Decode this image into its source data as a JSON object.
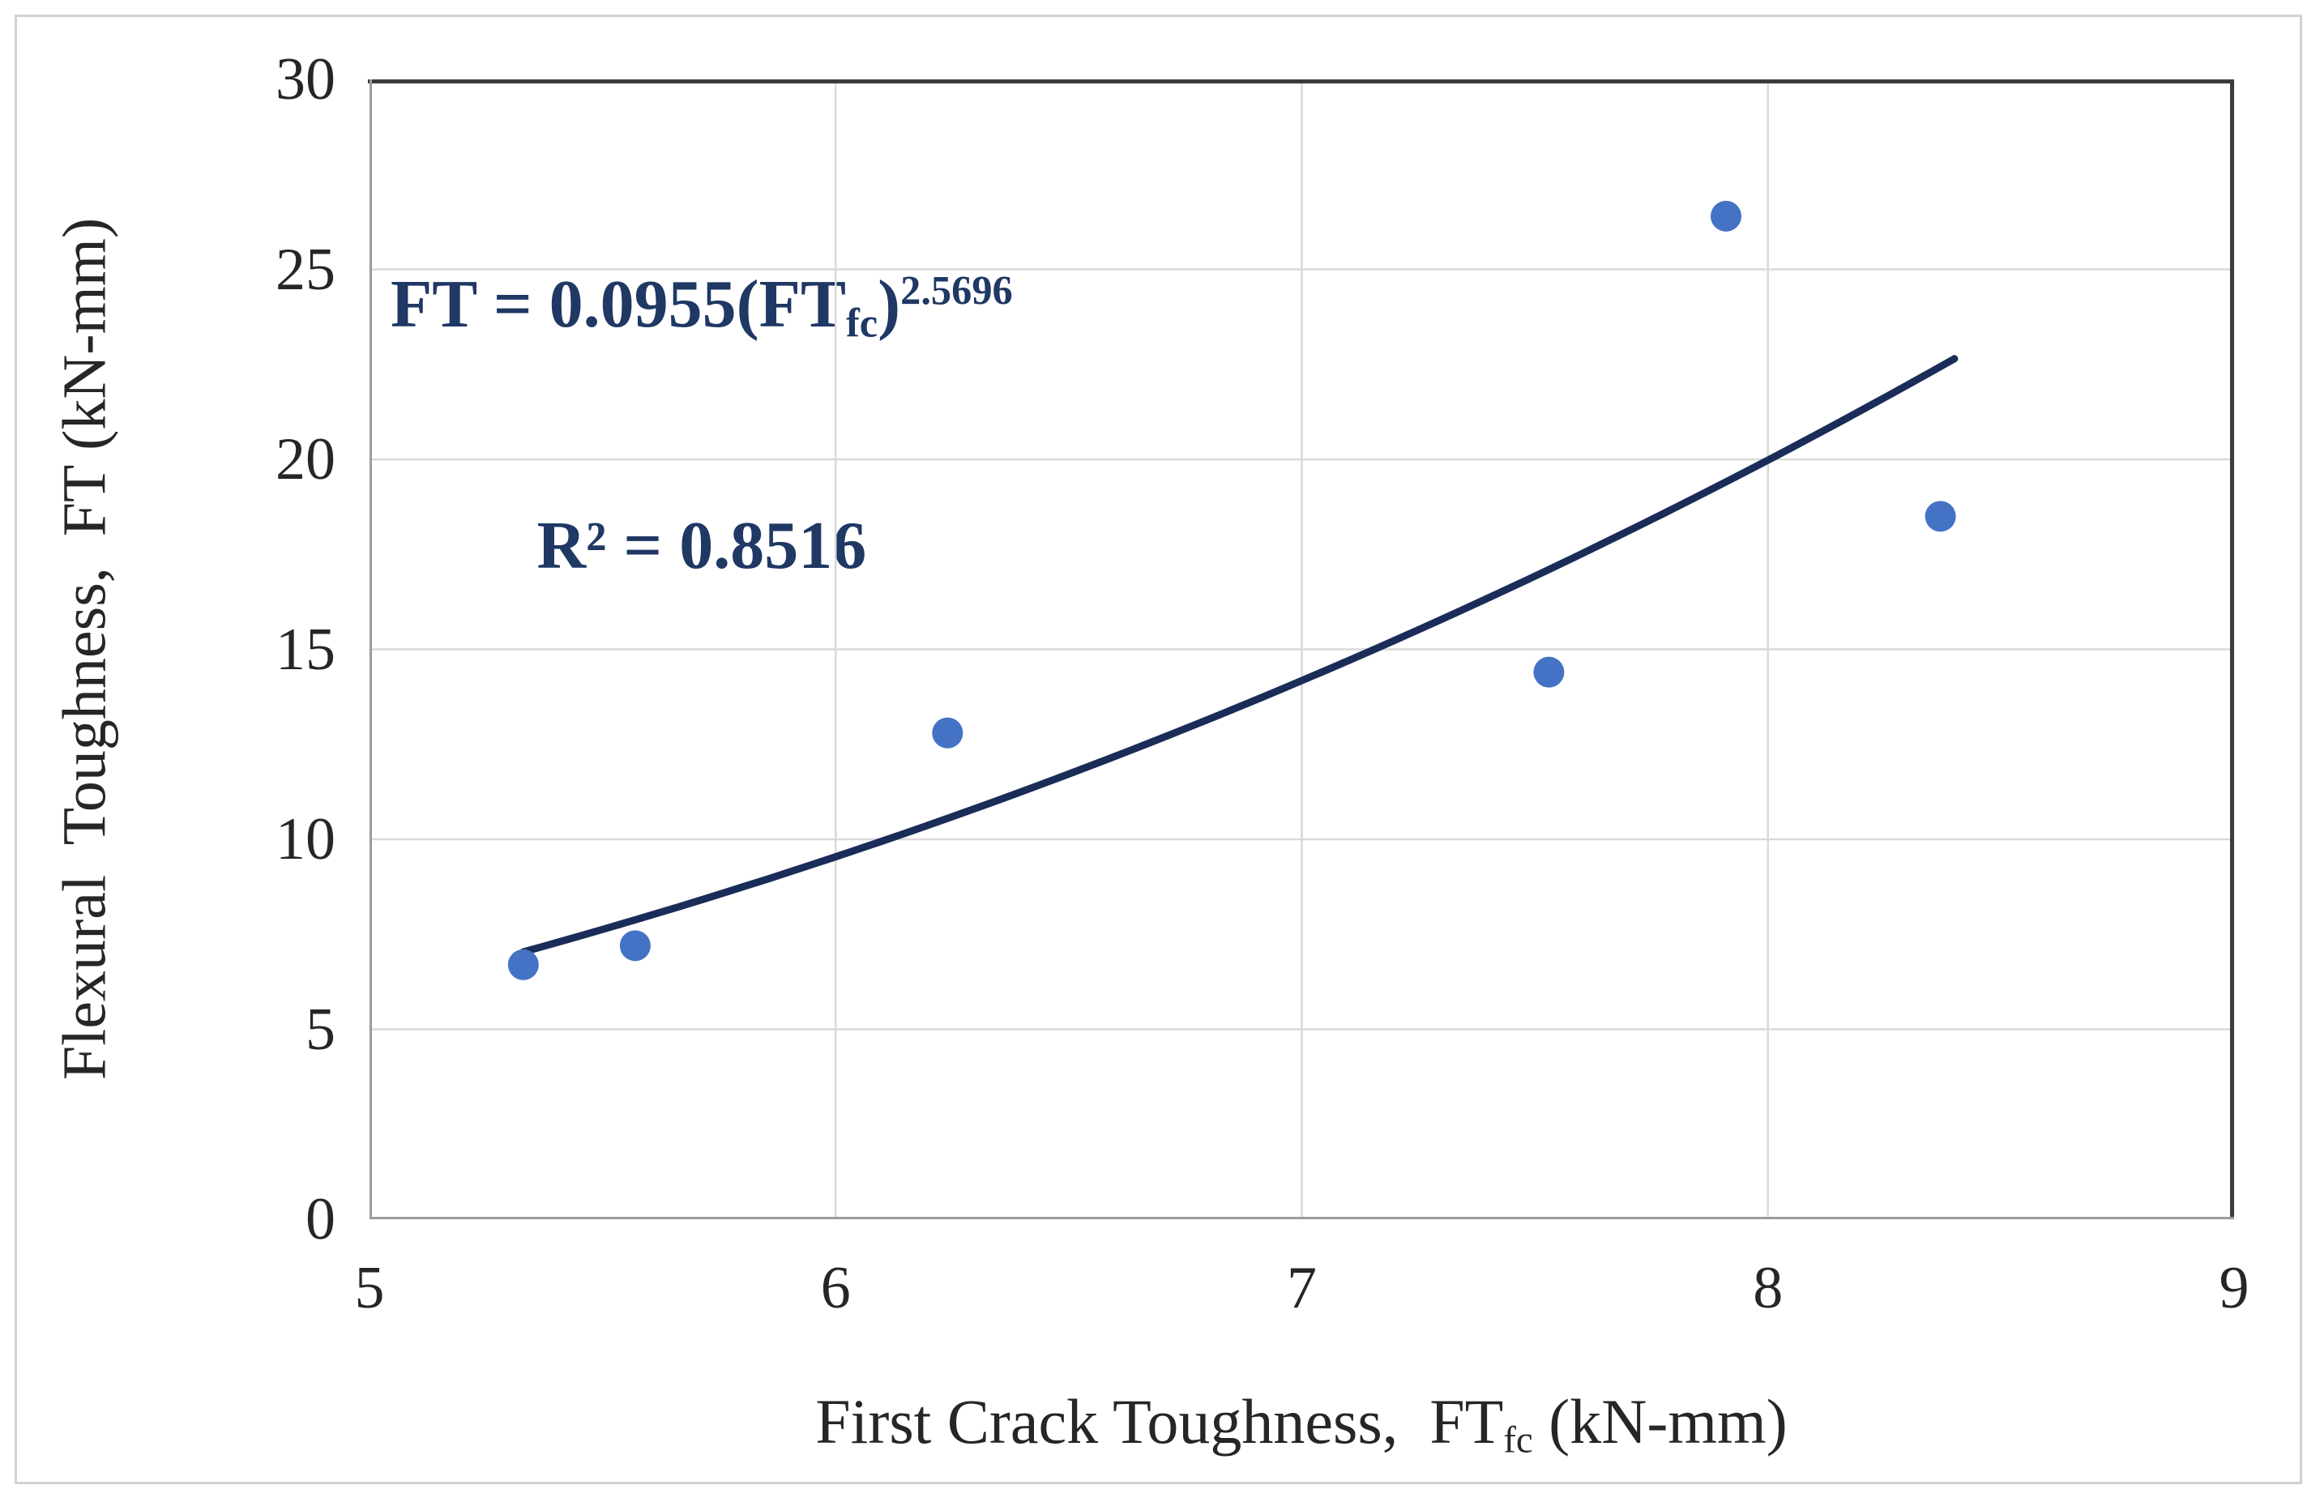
{
  "figure": {
    "background": "#ffffff",
    "outer_border_color": "#d2d2d2"
  },
  "annotation": {
    "line1_prefix": "FT = 0.0955(FT",
    "line1_sub": "fc",
    "line1_close": ")",
    "line1_sup": "2.5696",
    "line2": "R² = 0.8516",
    "color": "#1F3864"
  },
  "chart_data": {
    "type": "scatter",
    "title": "",
    "xlabel_prefix": "First Crack Toughness,  FT",
    "xlabel_sub": "fc",
    "xlabel_suffix": " (kN-mm)",
    "ylabel": "Flexural  Toughness,  FT (kN-mm)",
    "xlim": [
      5,
      9
    ],
    "ylim": [
      0,
      30
    ],
    "x_ticks": [
      "5",
      "6",
      "7",
      "8",
      "9"
    ],
    "y_ticks": [
      "0",
      "5",
      "10",
      "15",
      "20",
      "25",
      "30"
    ],
    "grid": true,
    "legend": "none",
    "points": [
      {
        "x": 5.33,
        "y": 6.7
      },
      {
        "x": 5.57,
        "y": 7.2
      },
      {
        "x": 6.24,
        "y": 12.8
      },
      {
        "x": 7.53,
        "y": 14.4
      },
      {
        "x": 7.91,
        "y": 26.4
      },
      {
        "x": 8.37,
        "y": 18.5
      }
    ],
    "trendline": {
      "kind": "power",
      "coefficient": 0.0955,
      "exponent": 2.5696,
      "x_start": 5.33,
      "x_end": 8.4,
      "r_squared": 0.8516
    },
    "colors": {
      "marker": "#4472C4",
      "trendline": "#1A2C58",
      "gridline": "#D9D9D9",
      "axis_line": "#9B9B9B",
      "plot_border_dark": "#3B3B3B",
      "tick_text": "#262626"
    }
  }
}
